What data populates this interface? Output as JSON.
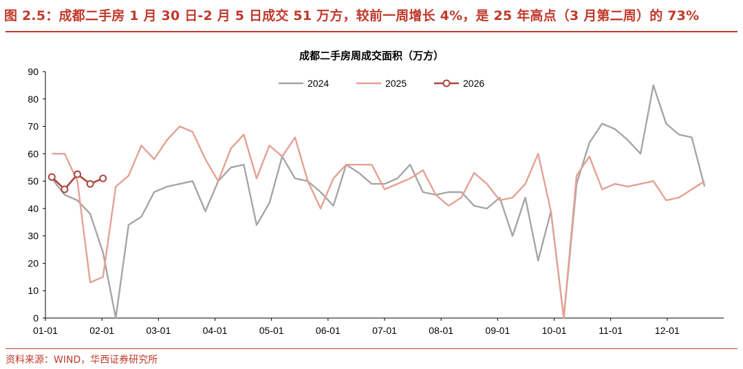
{
  "figure": {
    "caption": "图 2.5：成都二手房 1 月 30 日-2 月 5 日成交 51 万方，较前一周增长 4%，是 25 年高点（3 月第二周）的 73%",
    "source": "资料来源：WIND，华西证券研究所",
    "accent_color": "#c0392b"
  },
  "chart_data": {
    "type": "line",
    "title": "成都二手房周成交面积（万方）",
    "xlabel": "",
    "ylabel": "",
    "ylim": [
      0,
      90
    ],
    "yticks": [
      0,
      10,
      20,
      30,
      40,
      50,
      60,
      70,
      80,
      90
    ],
    "x_ticks": [
      "01-01",
      "02-01",
      "03-01",
      "04-01",
      "05-01",
      "06-01",
      "07-01",
      "08-01",
      "09-01",
      "10-01",
      "11-01",
      "12-01"
    ],
    "week_count": 53,
    "grid": false,
    "legend_position": "top-center",
    "series": [
      {
        "name": "2024",
        "color": "#a5a5a5",
        "markers": false,
        "values": [
          51,
          45,
          43,
          38,
          24,
          0,
          34,
          37,
          46,
          48,
          49,
          50,
          39,
          50,
          55,
          56,
          34,
          42,
          59,
          51,
          50,
          46,
          41,
          56,
          53,
          49,
          49,
          51,
          56,
          46,
          45,
          46,
          46,
          41,
          40,
          44,
          30,
          44,
          21,
          39,
          0,
          49,
          64,
          71,
          69,
          65,
          60,
          85,
          71,
          67,
          66,
          48
        ]
      },
      {
        "name": "2025",
        "color": "#e3a193",
        "markers": false,
        "values": [
          60,
          60,
          50,
          13,
          15,
          48,
          52,
          63,
          58,
          65,
          70,
          68,
          58,
          50,
          62,
          67,
          51,
          63,
          59,
          66,
          50,
          40,
          51,
          56,
          56,
          56,
          47,
          49,
          51,
          54,
          45,
          41,
          44,
          53,
          49,
          43,
          44,
          49,
          60,
          39,
          0,
          52,
          59,
          47,
          49,
          48,
          49,
          50,
          43,
          44,
          47,
          50
        ]
      },
      {
        "name": "2026",
        "color": "#a9453d",
        "markers": true,
        "values": [
          51.5,
          47,
          52.5,
          49,
          51
        ]
      }
    ]
  }
}
